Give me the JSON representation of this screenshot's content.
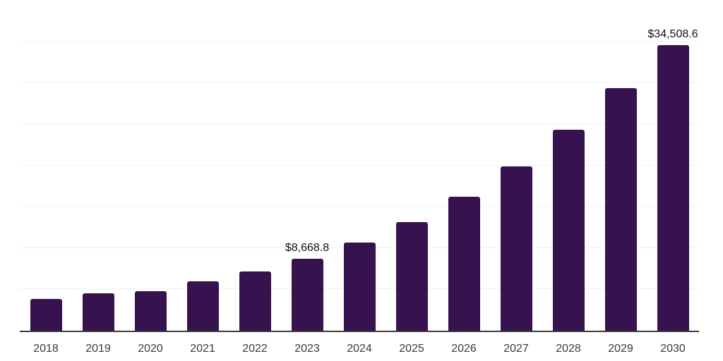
{
  "chart": {
    "background": "#ffffff",
    "bar_color": "#36124e",
    "axis_color": "#3a3a3a",
    "gridline_color": "#f1f1f1",
    "tick_label_color": "#3a3a3a",
    "value_label_color": "#111111"
  },
  "chart_data": {
    "type": "bar",
    "title": "",
    "xlabel": "",
    "ylabel": "",
    "categories": [
      "2018",
      "2019",
      "2020",
      "2021",
      "2022",
      "2023",
      "2024",
      "2025",
      "2026",
      "2027",
      "2028",
      "2029",
      "2030"
    ],
    "values": [
      3850,
      4550,
      4800,
      6000,
      7200,
      8668.8,
      10700,
      13100,
      16200,
      19850,
      24350,
      29300,
      34508.6
    ],
    "data_labels": [
      "",
      "",
      "",
      "",
      "",
      "$8,668.8",
      "",
      "",
      "",
      "",
      "",
      "",
      "$34,508.6"
    ],
    "ylim": [
      0,
      40000
    ],
    "grid_interval": 5000,
    "grid": "horizontal",
    "y_axis_labels_visible": false,
    "legend": "none"
  }
}
